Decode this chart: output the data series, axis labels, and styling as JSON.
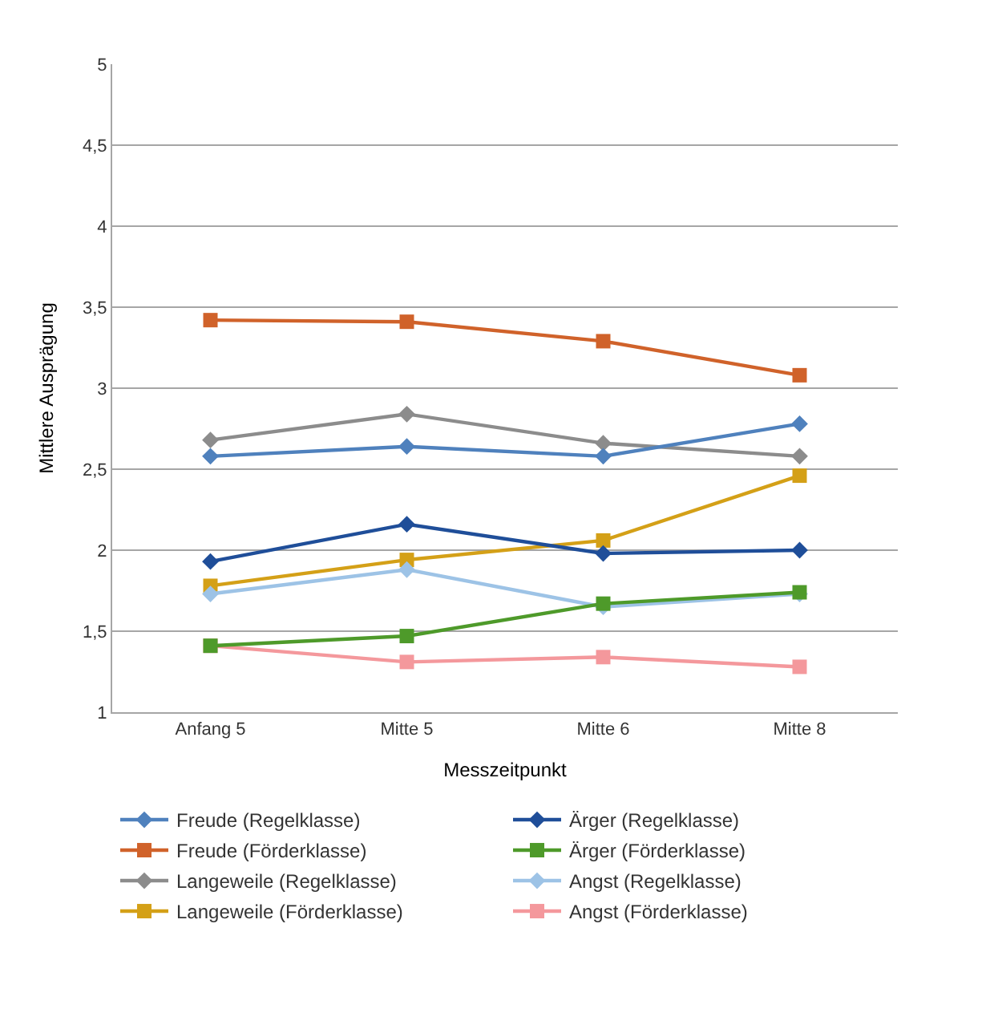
{
  "chart_data": {
    "type": "line",
    "xlabel": "Messzeitpunkt",
    "ylabel": "Mittlere Ausprägung",
    "categories": [
      "Anfang 5",
      "Mitte 5",
      "Mitte 6",
      "Mitte 8"
    ],
    "ylim": [
      1,
      5
    ],
    "yticks": [
      1,
      {
        "value": 1.5,
        "label": "1,5"
      },
      2,
      {
        "value": 2.5,
        "label": "2,5"
      },
      3,
      {
        "value": 3.5,
        "label": "3,5"
      },
      4,
      {
        "value": 4.5,
        "label": "4,5"
      },
      5
    ],
    "grid": "y",
    "legend": "bottom",
    "line_style": "solid",
    "series": [
      {
        "name": "Freude (Regelklasse)",
        "color": "#4f81bd",
        "marker": "diamond",
        "values": [
          2.58,
          2.64,
          2.58,
          2.78
        ]
      },
      {
        "name": "Ärger (Regelklasse)",
        "color": "#1f4e99",
        "marker": "diamond",
        "values": [
          1.93,
          2.16,
          1.98,
          2.0
        ]
      },
      {
        "name": "Freude (Förderklasse)",
        "color": "#d0622a",
        "marker": "square",
        "values": [
          3.42,
          3.41,
          3.29,
          3.08
        ]
      },
      {
        "name": "Ärger (Förderklasse)",
        "color": "#4e9a2a",
        "marker": "square",
        "values": [
          1.41,
          1.47,
          1.67,
          1.74
        ]
      },
      {
        "name": "Langeweile (Regelklasse)",
        "color": "#8c8c8c",
        "marker": "diamond",
        "values": [
          2.68,
          2.84,
          2.66,
          2.58
        ]
      },
      {
        "name": "Angst (Regelklasse)",
        "color": "#9dc3e6",
        "marker": "diamond",
        "values": [
          1.73,
          1.88,
          1.65,
          1.73
        ]
      },
      {
        "name": "Langeweile (Förderklasse)",
        "color": "#d4a017",
        "marker": "square",
        "values": [
          1.78,
          1.94,
          2.06,
          2.46
        ]
      },
      {
        "name": "Angst (Förderklasse)",
        "color": "#f4989c",
        "marker": "square",
        "values": [
          1.41,
          1.31,
          1.34,
          1.28
        ]
      }
    ]
  }
}
